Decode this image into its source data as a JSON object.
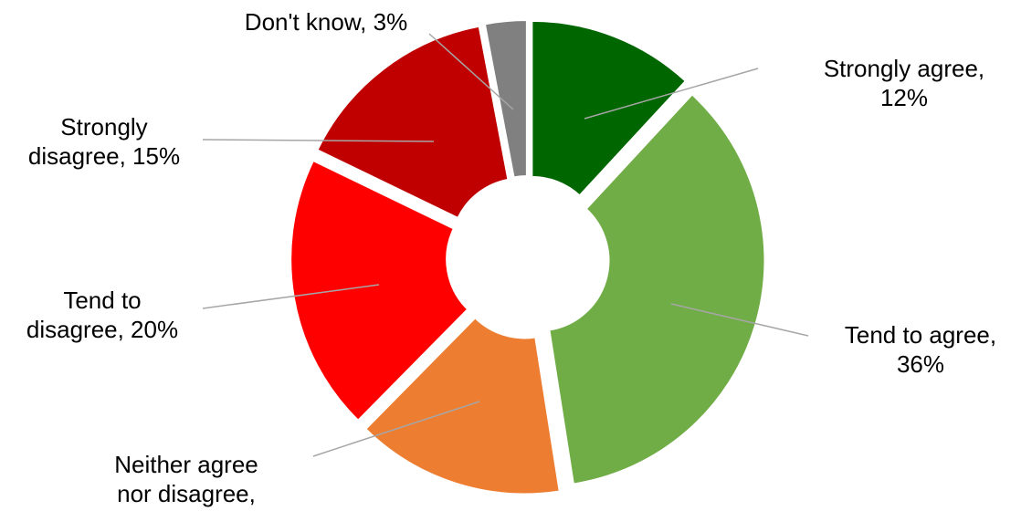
{
  "chart_data": {
    "type": "pie",
    "style": "donut-exploded",
    "title": "",
    "slices": [
      {
        "name": "Strongly agree",
        "value": 12,
        "color": "#006600",
        "label_lines": [
          "Strongly agree,",
          "12%"
        ]
      },
      {
        "name": "Tend to agree",
        "value": 36,
        "color": "#70ad47",
        "label_lines": [
          "Tend to agree,",
          "36%"
        ]
      },
      {
        "name": "Neither agree nor disagree",
        "value": 15,
        "color": "#ed7d31",
        "label_lines": [
          "Neither agree",
          "nor disagree,"
        ]
      },
      {
        "name": "Tend to disagree",
        "value": 20,
        "color": "#ff0000",
        "label_lines": [
          "Tend to",
          "disagree, 20%"
        ]
      },
      {
        "name": "Strongly disagree",
        "value": 15,
        "color": "#c00000",
        "label_lines": [
          "Strongly",
          "disagree, 15%"
        ]
      },
      {
        "name": "Don't know",
        "value": 3,
        "color": "#808080",
        "label_lines": [
          "Don't know, 3%"
        ]
      }
    ]
  }
}
